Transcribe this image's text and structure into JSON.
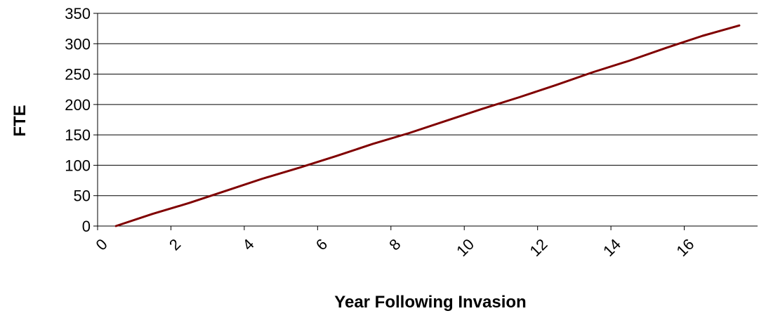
{
  "chart_data": {
    "type": "line",
    "title": "",
    "xlabel": "Year Following Invasion",
    "ylabel": "FTE",
    "xlim": [
      0,
      18
    ],
    "ylim": [
      0,
      350
    ],
    "x_ticks": [
      0,
      2,
      4,
      6,
      8,
      10,
      12,
      14,
      16
    ],
    "y_ticks": [
      0,
      50,
      100,
      150,
      200,
      250,
      300,
      350
    ],
    "x_tick_labels": [
      "0",
      "2",
      "4",
      "6",
      "8",
      "10",
      "12",
      "14",
      "16"
    ],
    "y_tick_labels": [
      "0",
      "50",
      "100",
      "150",
      "200",
      "250",
      "300",
      "350"
    ],
    "grid": "horizontal",
    "legend": "none",
    "series": [
      {
        "color": "#800000",
        "x": [
          0.5,
          1.5,
          2.5,
          3.5,
          4.5,
          5.5,
          6.5,
          7.5,
          8.5,
          9.5,
          10.5,
          11.5,
          12.5,
          13.5,
          14.5,
          15.5,
          16.5,
          17.5
        ],
        "y": [
          0,
          20,
          38,
          58,
          78,
          96,
          115,
          135,
          153,
          173,
          193,
          212,
          232,
          253,
          272,
          293,
          313,
          330
        ]
      }
    ]
  }
}
